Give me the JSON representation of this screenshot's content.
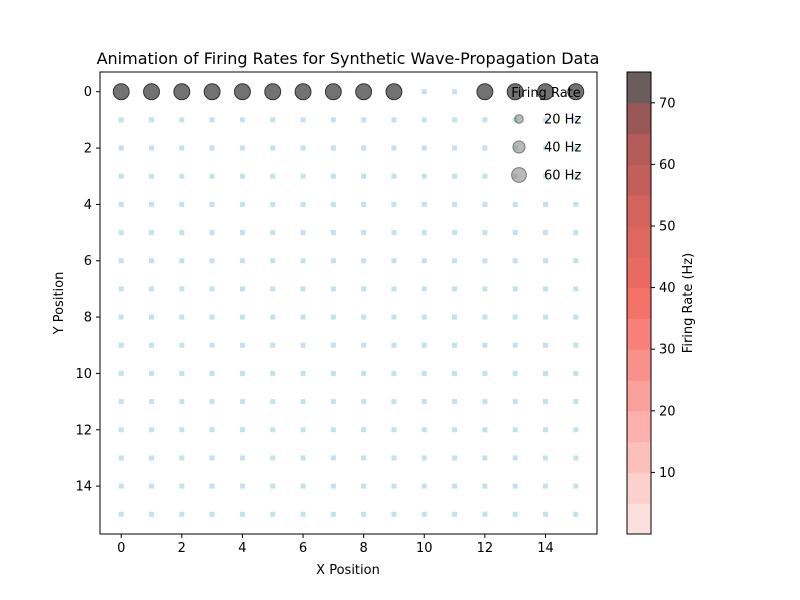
{
  "chart_data": {
    "type": "scatter",
    "title": "Animation of Firing Rates for Synthetic Wave-Propagation Data",
    "xlabel": "X Position",
    "ylabel": "Y Position",
    "xlim": [
      -0.7,
      15.7
    ],
    "ylim": [
      15.7,
      -0.7
    ],
    "y_inverted": true,
    "xticks": [
      0,
      2,
      4,
      6,
      8,
      10,
      12,
      14
    ],
    "yticks": [
      0,
      2,
      4,
      6,
      8,
      10,
      12,
      14
    ],
    "grid": false,
    "grid_size": [
      16,
      16
    ],
    "baseline_color": "#add8e6",
    "active_row": 0,
    "active_points": [
      {
        "x": 0,
        "rate": 70
      },
      {
        "x": 1,
        "rate": 70
      },
      {
        "x": 2,
        "rate": 70
      },
      {
        "x": 3,
        "rate": 70
      },
      {
        "x": 4,
        "rate": 70
      },
      {
        "x": 5,
        "rate": 70
      },
      {
        "x": 6,
        "rate": 70
      },
      {
        "x": 7,
        "rate": 70
      },
      {
        "x": 8,
        "rate": 70
      },
      {
        "x": 9,
        "rate": 70
      },
      {
        "x": 12,
        "rate": 70
      },
      {
        "x": 13,
        "rate": 70
      },
      {
        "x": 14,
        "rate": 70
      },
      {
        "x": 15,
        "rate": 70
      }
    ],
    "legend": {
      "title": "Firing Rate",
      "location": "upper right",
      "entries": [
        {
          "label": "20 Hz",
          "rate": 20
        },
        {
          "label": "40 Hz",
          "rate": 40
        },
        {
          "label": "60 Hz",
          "rate": 60
        }
      ]
    },
    "colorbar": {
      "label": "Firing Rate (Hz)",
      "range": [
        0,
        75
      ],
      "ticks": [
        10,
        20,
        30,
        40,
        50,
        60,
        70
      ],
      "colors": [
        "#fde0dd",
        "#fcd0cc",
        "#fcbfba",
        "#fbb0ab",
        "#faa09b",
        "#f8918b",
        "#f7807a",
        "#f57268",
        "#ea6a61",
        "#de675f",
        "#d2635d",
        "#c35f5b",
        "#b45a59",
        "#985856",
        "#6b5d5e"
      ],
      "point_color": "#595959"
    }
  }
}
